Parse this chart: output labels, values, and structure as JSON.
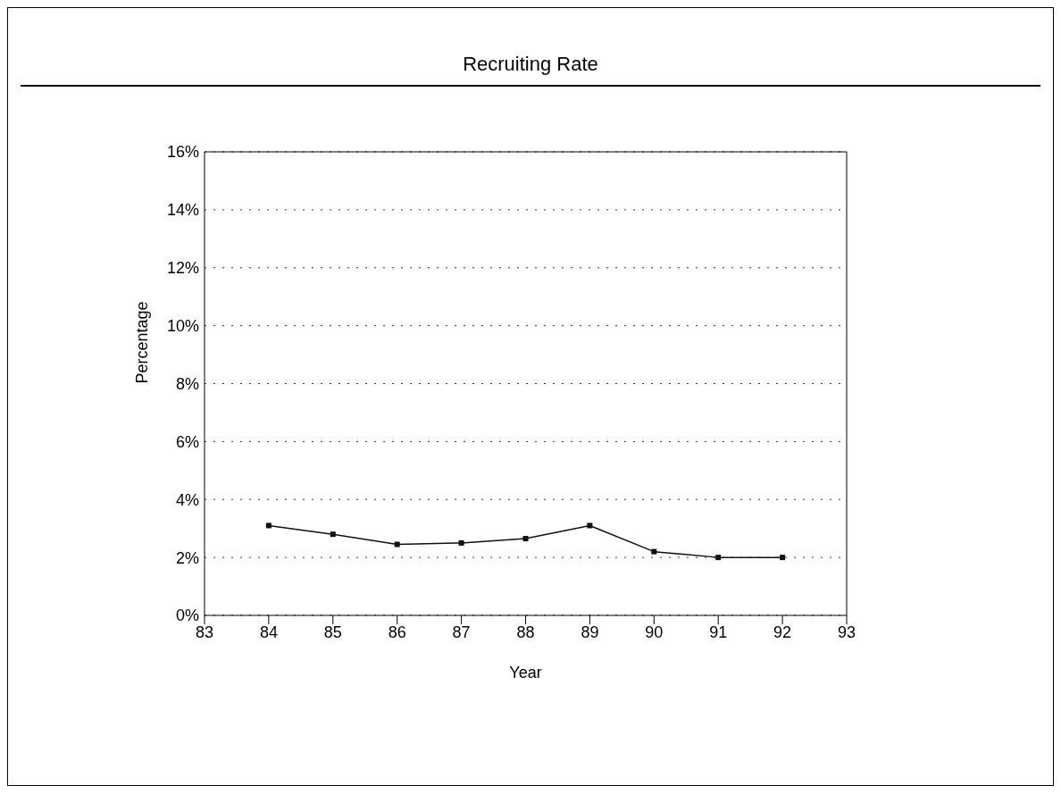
{
  "chart_data": {
    "type": "line",
    "title": "Recruiting Rate",
    "xlabel": "Year",
    "ylabel": "Percentage",
    "x": [
      84,
      85,
      86,
      87,
      88,
      89,
      90,
      91,
      92
    ],
    "series": [
      {
        "color": "#111111",
        "values": [
          3.1,
          2.8,
          2.45,
          2.5,
          2.65,
          3.1,
          2.2,
          2.0,
          2.0
        ]
      }
    ],
    "xlim": [
      83,
      93
    ],
    "xticks": [
      83,
      84,
      85,
      86,
      87,
      88,
      89,
      90,
      91,
      92,
      93
    ],
    "ylim": [
      0,
      16
    ],
    "yticks": [
      {
        "value": 0,
        "label": "0%"
      },
      {
        "value": 2,
        "label": "2%"
      },
      {
        "value": 4,
        "label": "4%"
      },
      {
        "value": 6,
        "label": "6%"
      },
      {
        "value": 8,
        "label": "8%"
      },
      {
        "value": 10,
        "label": "10%"
      },
      {
        "value": 12,
        "label": "12%"
      },
      {
        "value": 14,
        "label": "14%"
      },
      {
        "value": 16,
        "label": "16%"
      }
    ],
    "grid": "y",
    "marker": "square",
    "line_style": "solid",
    "legend": false
  }
}
